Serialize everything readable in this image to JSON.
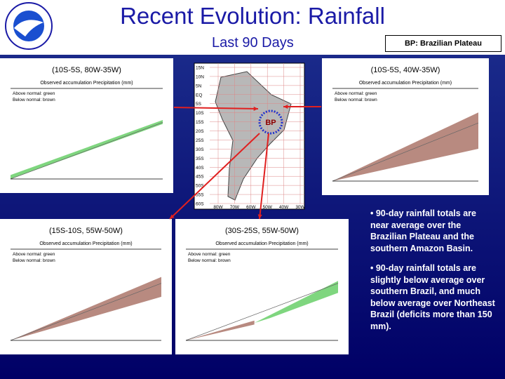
{
  "header": {
    "title": "Recent Evolution: Rainfall",
    "subtitle": "Last 90 Days",
    "key": "BP: Brazilian Plateau"
  },
  "map": {
    "marker": "BP",
    "lat_labels": [
      "15N",
      "10N",
      "5N",
      "EQ",
      "5S",
      "10S",
      "15S",
      "20S",
      "25S",
      "30S",
      "35S",
      "40S",
      "45S",
      "50S",
      "55S",
      "60S"
    ],
    "lon_labels": [
      "80W",
      "70W",
      "60W",
      "50W",
      "40W",
      "30W"
    ]
  },
  "panels": [
    {
      "title": "(10S-5S, 80W-35W)",
      "subtitle": "Observed accumulation Precipitation (mm)",
      "legend": [
        "Above normal: green",
        "Below normal: brown"
      ]
    },
    {
      "title": "(10S-5S, 40W-35W)",
      "subtitle": "Observed accumulation Precipitation (mm)",
      "legend": [
        "Above normal: green",
        "Below normal: brown"
      ]
    },
    {
      "title": "(15S-10S, 55W-50W)",
      "subtitle": "Observed accumulation Precipitation (mm)",
      "legend": [
        "Above normal: green",
        "Below normal: brown"
      ]
    },
    {
      "title": "(30S-25S, 55W-50W)",
      "subtitle": "Observed accumulation Precipitation (mm)",
      "legend": [
        "Above normal: green",
        "Below normal: brown"
      ]
    }
  ],
  "bullets": [
    "• 90-day rainfall totals are near average over the Brazilian Plateau and the southern Amazon Basin.",
    "• 90-day rainfall totals are slightly below average over southern Brazil, and much below average over Northeast Brazil (deficits more than 150 mm)."
  ]
}
